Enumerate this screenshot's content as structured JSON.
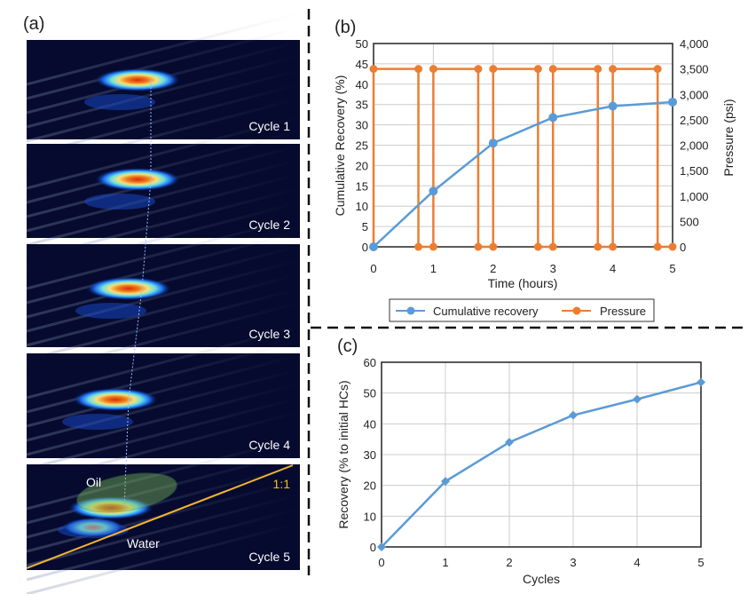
{
  "panel_a": {
    "label": "(a)",
    "cycles": [
      "Cycle 1",
      "Cycle 2",
      "Cycle 3",
      "Cycle 4",
      "Cycle 5"
    ],
    "oil_label": "Oil",
    "water_label": "Water",
    "ratio_label": "1:1",
    "colors": {
      "background": "#050a2e",
      "ratio_line": "#f2b431",
      "ratio_text": "#f2c21b"
    }
  },
  "chart_data": [
    {
      "panel_label": "(b)",
      "type": "line",
      "xlabel": "Time (hours)",
      "ylabel": "Cumulative Recovery (%)",
      "y2label": "Pressure (psi)",
      "xlim": [
        0,
        5
      ],
      "ylim": [
        0,
        50
      ],
      "y2lim": [
        0,
        4000
      ],
      "xticks": [
        "0",
        "1",
        "2",
        "3",
        "4",
        "5"
      ],
      "yticks": [
        "0",
        "5",
        "10",
        "15",
        "20",
        "25",
        "30",
        "35",
        "40",
        "45",
        "50"
      ],
      "y2ticks": [
        "0",
        "500",
        "1,000",
        "1,500",
        "2,000",
        "2,500",
        "3,000",
        "3,500",
        "4,000"
      ],
      "grid": true,
      "legend_position": "bottom",
      "series": [
        {
          "name": "Cumulative recovery",
          "axis": "left",
          "color": "#5b9bd5",
          "x": [
            0,
            1,
            2,
            3,
            4,
            5
          ],
          "y": [
            0,
            13.7,
            25.5,
            31.8,
            34.6,
            35.6
          ]
        },
        {
          "name": "Pressure",
          "axis": "right",
          "color": "#ed7d31",
          "x": [
            0,
            0,
            0.75,
            0.75,
            1,
            1,
            1.75,
            1.75,
            2,
            2,
            2.75,
            2.75,
            3,
            3,
            3.75,
            3.75,
            4,
            4,
            4.75,
            4.75,
            5
          ],
          "y": [
            0,
            3500,
            3500,
            0,
            0,
            3500,
            3500,
            0,
            0,
            3500,
            3500,
            0,
            0,
            3500,
            3500,
            0,
            0,
            3500,
            3500,
            0,
            0
          ]
        }
      ]
    },
    {
      "panel_label": "(c)",
      "type": "line",
      "xlabel": "Cycles",
      "ylabel": "Recovery (% to initial HCs)",
      "xlim": [
        0,
        5
      ],
      "ylim": [
        0,
        60
      ],
      "xticks": [
        "0",
        "1",
        "2",
        "3",
        "4",
        "5"
      ],
      "yticks": [
        "0",
        "10",
        "20",
        "30",
        "40",
        "50",
        "60"
      ],
      "grid": true,
      "series": [
        {
          "color": "#5b9bd5",
          "marker": "diamond",
          "x": [
            0,
            1,
            2,
            3,
            4,
            5
          ],
          "y": [
            0,
            21.3,
            34,
            42.8,
            48,
            53.5
          ]
        }
      ]
    }
  ]
}
